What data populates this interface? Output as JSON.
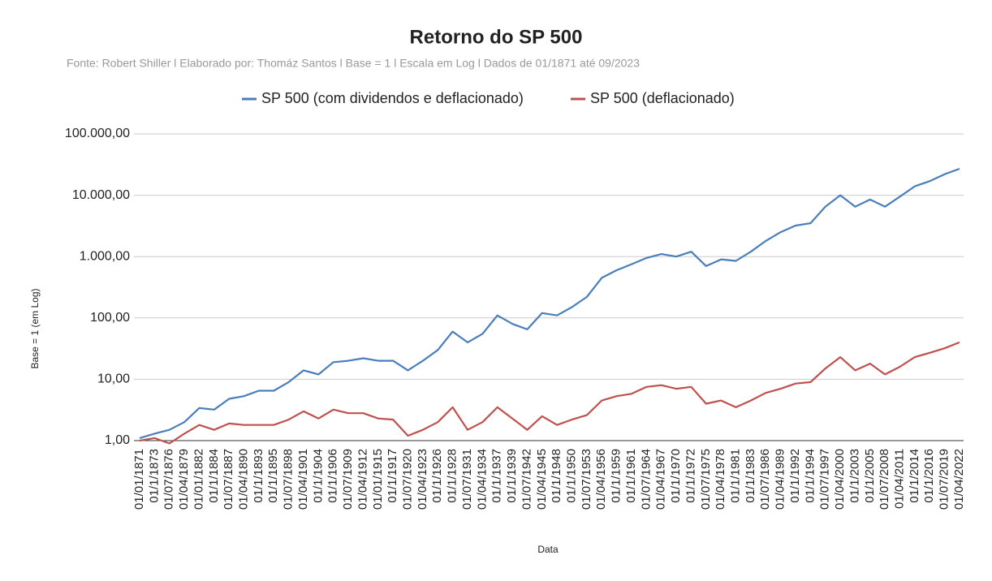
{
  "chart_data": {
    "type": "line",
    "title": "Retorno do SP 500",
    "subtitle": "Fonte: Robert Shiller l Elaborado por: Thomáz Santos l Base = 1 l Escala em Log l Dados de 01/1871 até 09/2023",
    "x_label": "Data",
    "y_label": "Base = 1 (em Log)",
    "log_scale": true,
    "grid": true,
    "legend": "top",
    "categories": [
      "01/01/1871",
      "01/1/1873",
      "01/07/1876",
      "01/04/1879",
      "01/01/1882",
      "01/1/1884",
      "01/07/1887",
      "01/04/1890",
      "01/1/1893",
      "01/1/1895",
      "01/07/1898",
      "01/04/1901",
      "01/1/1904",
      "01/1/1906",
      "01/07/1909",
      "01/04/1912",
      "01/01/1915",
      "01/1/1917",
      "01/07/1920",
      "01/04/1923",
      "01/1/1926",
      "01/1/1928",
      "01/07/1931",
      "01/04/1934",
      "01/1/1937",
      "01/1/1939",
      "01/07/1942",
      "01/04/1945",
      "01/1/1948",
      "01/1/1950",
      "01/07/1953",
      "01/04/1956",
      "01/1/1959",
      "01/1/1961",
      "01/07/1964",
      "01/04/1967",
      "01/1/1970",
      "01/1/1972",
      "01/07/1975",
      "01/04/1978",
      "01/1/1981",
      "01/1/1983",
      "01/07/1986",
      "01/04/1989",
      "01/1/1992",
      "01/1/1994",
      "01/07/1997",
      "01/04/2000",
      "01/1/2003",
      "01/1/2005",
      "01/07/2008",
      "01/04/2011",
      "01/1/2014",
      "01/1/2016",
      "01/07/2019",
      "01/04/2022"
    ],
    "series": [
      {
        "name": "SP 500 (com dividendos e deflacionado)",
        "color": "#4a7ebb",
        "values": [
          1.1,
          1.3,
          1.5,
          2.0,
          3.4,
          3.2,
          4.8,
          5.3,
          6.5,
          6.5,
          9,
          14,
          12,
          19,
          20,
          22,
          20,
          20,
          14,
          20,
          30,
          60,
          40,
          55,
          110,
          80,
          65,
          120,
          110,
          150,
          220,
          450,
          600,
          750,
          950,
          1100,
          1000,
          1200,
          700,
          900,
          850,
          1200,
          1800,
          2500,
          3200,
          3500,
          6500,
          10000,
          6500,
          8500,
          6500,
          9500,
          14000,
          17000,
          22000,
          27000
        ]
      },
      {
        "name": "SP 500 (deflacionado)",
        "color": "#c0504d",
        "values": [
          1.0,
          1.1,
          0.9,
          1.3,
          1.8,
          1.5,
          1.9,
          1.8,
          1.8,
          1.8,
          2.2,
          3.0,
          2.3,
          3.2,
          2.8,
          2.8,
          2.3,
          2.2,
          1.2,
          1.5,
          2.0,
          3.5,
          1.5,
          2.0,
          3.5,
          2.3,
          1.5,
          2.5,
          1.8,
          2.2,
          2.6,
          4.5,
          5.3,
          5.8,
          7.5,
          8,
          7,
          7.5,
          4,
          4.5,
          3.5,
          4.5,
          6,
          7,
          8.5,
          9,
          15,
          23,
          14,
          18,
          12,
          16,
          23,
          27,
          32,
          40
        ]
      }
    ],
    "ylim": [
      1,
      100000
    ],
    "yticks": [
      {
        "value": 1,
        "label": "1,00"
      },
      {
        "value": 10,
        "label": "10,00"
      },
      {
        "value": 100,
        "label": "100,00"
      },
      {
        "value": 1000,
        "label": "1.000,00"
      },
      {
        "value": 10000,
        "label": "10.000,00"
      },
      {
        "value": 100000,
        "label": "100.000,00"
      }
    ]
  }
}
